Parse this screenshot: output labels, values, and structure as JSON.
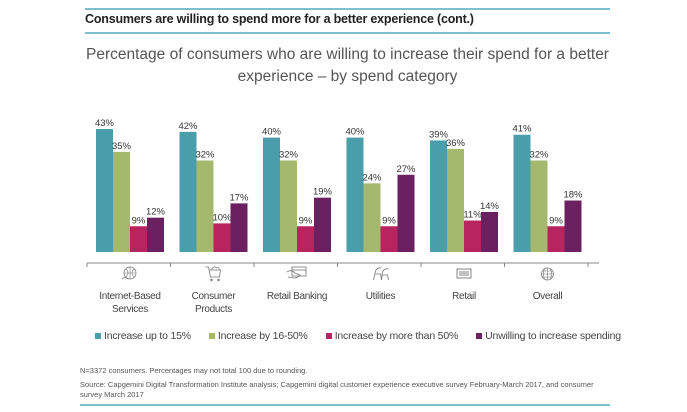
{
  "header": {
    "title": "Consumers are willing to spend more for a better experience (cont.)"
  },
  "colors": {
    "rule": "#7fbfca",
    "teal": "#4a9daa",
    "green": "#a4b96e",
    "pink": "#b8245f",
    "purple": "#6b2160",
    "axis": "#888888"
  },
  "chart_data": {
    "type": "bar",
    "title": "Percentage of consumers who are willing to increase their spend for a better experience – by spend category",
    "xlabel": "",
    "ylabel": "",
    "ylim": [
      0,
      45
    ],
    "grid": false,
    "legend_position": "bottom",
    "categories": [
      "Internet-Based Services",
      "Consumer Products",
      "Retail Banking",
      "Utilities",
      "Retail",
      "Overall"
    ],
    "category_lines": [
      [
        "Internet-Based",
        "Services"
      ],
      [
        "Consumer",
        "Products"
      ],
      [
        "Retail Banking"
      ],
      [
        "Utilities"
      ],
      [
        "Retail"
      ],
      [
        "Overall"
      ]
    ],
    "category_icons": [
      "globe-hand-icon",
      "shopping-cart-icon",
      "credit-card-hand-icon",
      "chairs-icon",
      "barcode-scanner-icon",
      "globe-icon"
    ],
    "series": [
      {
        "name": "Increase up to 15%",
        "color": "#4a9daa",
        "values": [
          43,
          42,
          40,
          40,
          39,
          41
        ]
      },
      {
        "name": "Increase by 16-50%",
        "color": "#a4b96e",
        "values": [
          35,
          32,
          32,
          24,
          36,
          32
        ]
      },
      {
        "name": "Increase by more than 50%",
        "color": "#b8245f",
        "values": [
          9,
          10,
          9,
          9,
          11,
          9
        ]
      },
      {
        "name": "Unwilling to increase spending",
        "color": "#6b2160",
        "values": [
          12,
          17,
          19,
          27,
          14,
          18
        ]
      }
    ],
    "value_suffix": "%"
  },
  "footnotes": {
    "note": "N=3372 consumers. Percentages may not total 100 due to rounding.",
    "source": "Source: Capgemini Digital Transformation Institute analysis; Capgemini digital customer experience executive survey February-March 2017, and consumer survey March 2017"
  }
}
